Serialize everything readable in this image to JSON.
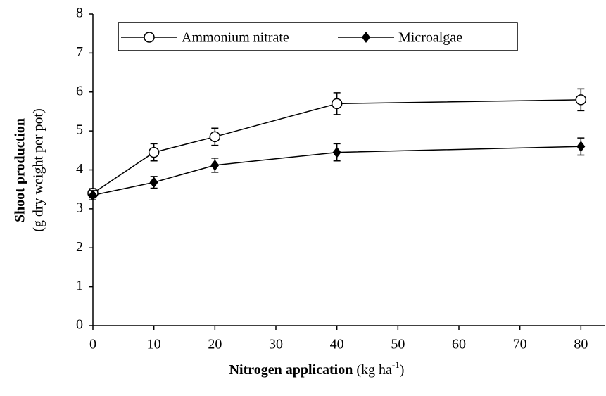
{
  "chart_data": {
    "type": "line",
    "x_label": [
      "Nitrogen application",
      "(kg ha",
      "-1",
      ")"
    ],
    "y_label": [
      "Shoot production",
      "(g dry weight per pot)"
    ],
    "x": [
      0,
      10,
      20,
      40,
      80
    ],
    "series": [
      {
        "name": "Ammonium nitrate",
        "color": "#000000",
        "marker": "open-circle",
        "values": [
          3.4,
          4.45,
          4.85,
          5.7,
          5.8
        ],
        "errors": [
          0.12,
          0.22,
          0.22,
          0.28,
          0.28
        ]
      },
      {
        "name": "Microalgae",
        "color": "#000000",
        "marker": "filled-diamond",
        "values": [
          3.35,
          3.68,
          4.12,
          4.45,
          4.6
        ],
        "errors": [
          0.12,
          0.15,
          0.18,
          0.22,
          0.22
        ]
      }
    ],
    "xlim": [
      0,
      84
    ],
    "xticks": [
      0,
      10,
      20,
      30,
      40,
      50,
      60,
      70,
      80
    ],
    "ylim": [
      0,
      8
    ],
    "yticks": [
      0,
      1,
      2,
      3,
      4,
      5,
      6,
      7,
      8
    ],
    "legend": "top"
  }
}
